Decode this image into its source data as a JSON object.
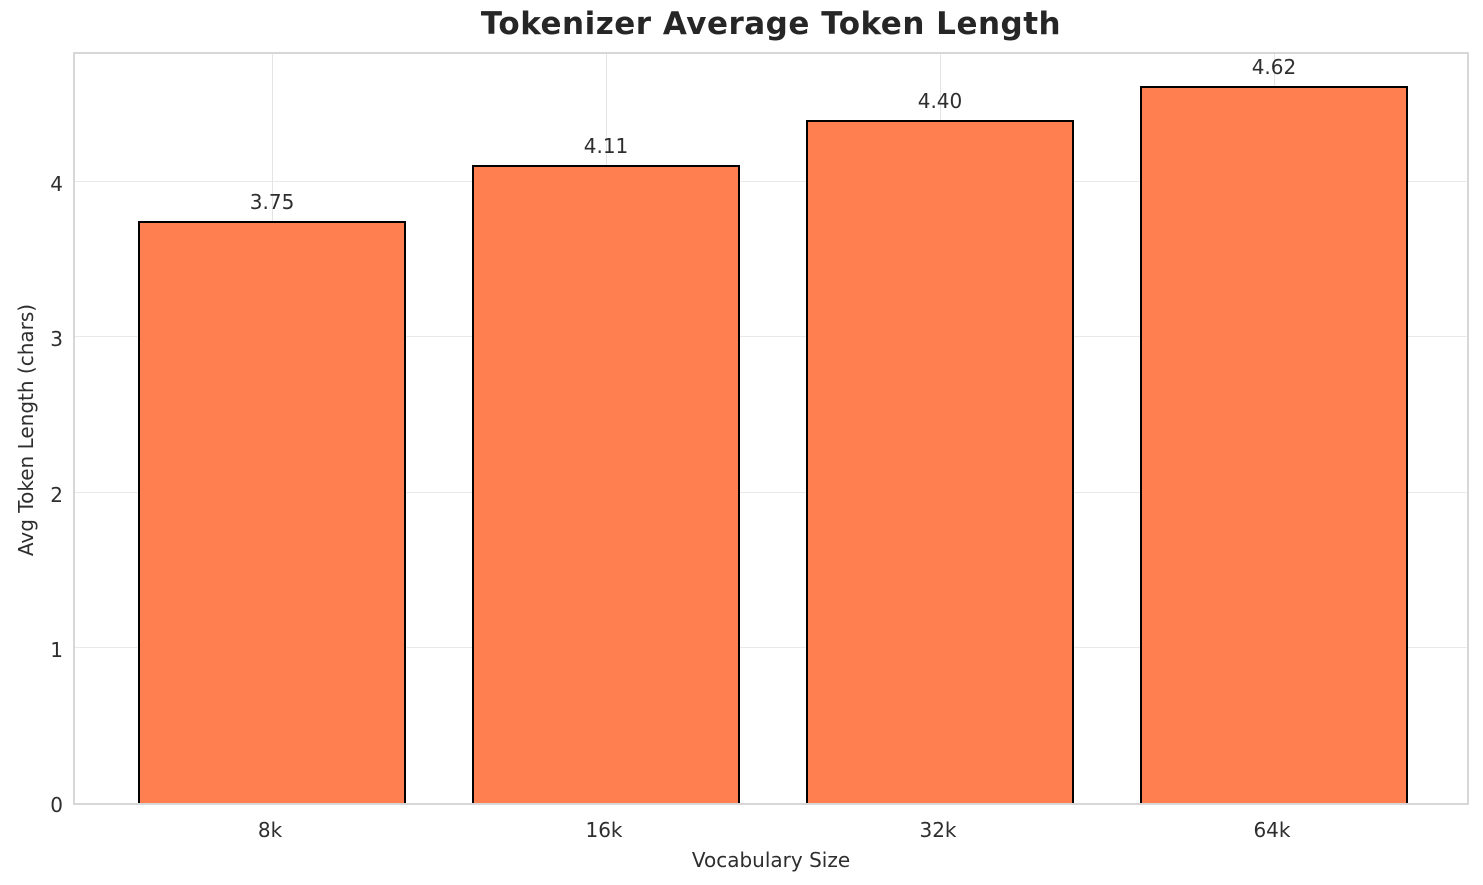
{
  "chart_data": {
    "type": "bar",
    "title": "Tokenizer Average Token Length",
    "xlabel": "Vocabulary Size",
    "ylabel": "Avg Token Length (chars)",
    "categories": [
      "8k",
      "16k",
      "32k",
      "64k"
    ],
    "values": [
      3.75,
      4.11,
      4.4,
      4.62
    ],
    "value_labels": [
      "3.75",
      "4.11",
      "4.40",
      "4.62"
    ],
    "yticks": [
      0,
      1,
      2,
      3,
      4
    ],
    "ylim": [
      0,
      4.851
    ],
    "grid": true,
    "legend": "none",
    "bar_color": "#FF7F50",
    "bar_edge_color": "#000000",
    "grid_color": "#e9e9e9",
    "spine_color": "#d7d7d7",
    "text_color": "#2e2e2e",
    "background_color": "#ffffff"
  }
}
